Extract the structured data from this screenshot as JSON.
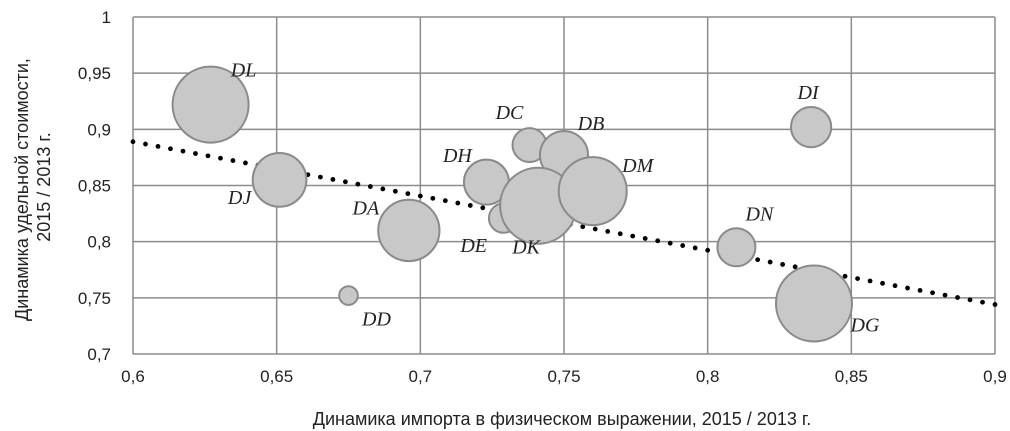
{
  "chart_data": {
    "type": "scatter",
    "subtype": "bubble",
    "title": "",
    "xlabel": "Динамика импорта в физическом выражении, 2015 / 2013 г.",
    "ylabel_lines": [
      "Динамика удельной стоимости,",
      "2015 / 2013 г."
    ],
    "xlim": [
      0.6,
      0.9
    ],
    "ylim": [
      0.7,
      1.0
    ],
    "x_ticks": [
      "0,6",
      "0,65",
      "0,7",
      "0,75",
      "0,8",
      "0,85",
      "0,9"
    ],
    "y_ticks": [
      "0,7",
      "0,75",
      "0,8",
      "0,85",
      "0,9",
      "0,95",
      "1"
    ],
    "grid": true,
    "points": [
      {
        "label": "DL",
        "x": 0.627,
        "y": 0.922,
        "size": 1.0
      },
      {
        "label": "DJ",
        "x": 0.651,
        "y": 0.855,
        "size": 0.5
      },
      {
        "label": "DA",
        "x": 0.696,
        "y": 0.81,
        "size": 0.65
      },
      {
        "label": "DD",
        "x": 0.675,
        "y": 0.752,
        "size": 0.06
      },
      {
        "label": "DH",
        "x": 0.723,
        "y": 0.853,
        "size": 0.35
      },
      {
        "label": "DC",
        "x": 0.738,
        "y": 0.886,
        "size": 0.2
      },
      {
        "label": "DB",
        "x": 0.75,
        "y": 0.877,
        "size": 0.4
      },
      {
        "label": "DE",
        "x": 0.729,
        "y": 0.821,
        "size": 0.15
      },
      {
        "label": "DK",
        "x": 0.741,
        "y": 0.832,
        "size": 1.0
      },
      {
        "label": "DM",
        "x": 0.76,
        "y": 0.845,
        "size": 0.8
      },
      {
        "label": "DI",
        "x": 0.836,
        "y": 0.902,
        "size": 0.28
      },
      {
        "label": "DN",
        "x": 0.81,
        "y": 0.795,
        "size": 0.25
      },
      {
        "label": "DG",
        "x": 0.837,
        "y": 0.745,
        "size": 1.0
      }
    ],
    "trendline": {
      "style": "dotted",
      "x_start": 0.6,
      "y_start": 0.889,
      "x_end": 0.9,
      "y_end": 0.744
    },
    "colors": {
      "bubble_fill": "#c8c8c8",
      "bubble_stroke": "#8a8a8a",
      "grid": "#8c8c8c",
      "trendline": "#000000"
    }
  }
}
